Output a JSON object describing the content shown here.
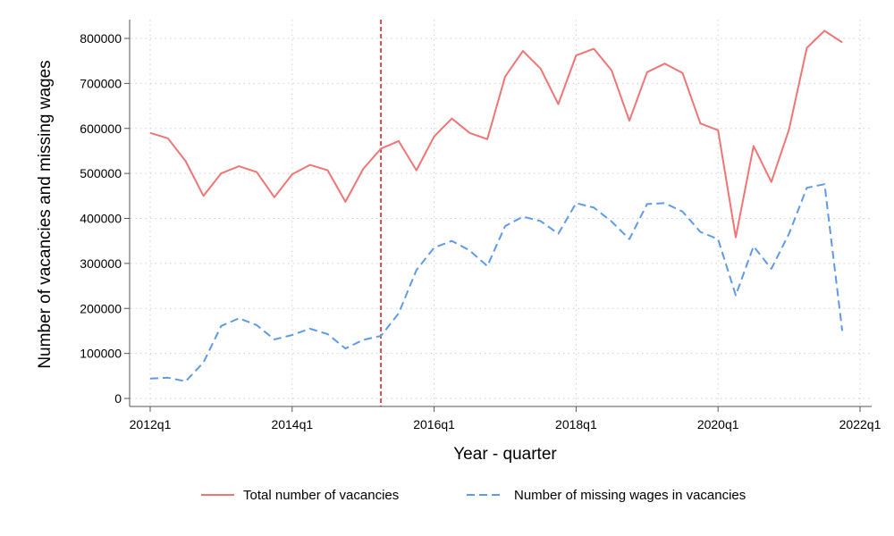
{
  "chart_data": {
    "type": "line",
    "title": "",
    "xlabel": "Year - quarter",
    "ylabel": "Number of vacancies and missing wages",
    "x_ticks": [
      "2012q1",
      "2014q1",
      "2016q1",
      "2018q1",
      "2020q1",
      "2022q1"
    ],
    "y_ticks": [
      "0",
      "100000",
      "200000",
      "300000",
      "400000",
      "500000",
      "600000",
      "700000",
      "800000"
    ],
    "xlim": [
      "2012q1",
      "2022q1"
    ],
    "ylim": [
      0,
      800000
    ],
    "grid": true,
    "legend_position": "bottom",
    "vertical_reference_line": "2015q2",
    "x": [
      "2012q1",
      "2012q2",
      "2012q3",
      "2012q4",
      "2013q1",
      "2013q2",
      "2013q3",
      "2013q4",
      "2014q1",
      "2014q2",
      "2014q3",
      "2014q4",
      "2015q1",
      "2015q2",
      "2015q3",
      "2015q4",
      "2016q1",
      "2016q2",
      "2016q3",
      "2016q4",
      "2017q1",
      "2017q2",
      "2017q3",
      "2017q4",
      "2018q1",
      "2018q2",
      "2018q3",
      "2018q4",
      "2019q1",
      "2019q2",
      "2019q3",
      "2019q4",
      "2020q1",
      "2020q2",
      "2020q3",
      "2020q4",
      "2021q1",
      "2021q2",
      "2021q3",
      "2021q4"
    ],
    "series": [
      {
        "name": "Total number of vacancies",
        "color": "#f07575",
        "dash": "solid",
        "values": [
          590000,
          578000,
          527000,
          450000,
          500000,
          516000,
          503000,
          447000,
          498000,
          519000,
          507000,
          437000,
          510000,
          555000,
          572000,
          507000,
          582000,
          622000,
          590000,
          576000,
          715000,
          772000,
          733000,
          654000,
          762000,
          777000,
          729000,
          617000,
          725000,
          744000,
          723000,
          611000,
          596000,
          358000,
          561000,
          481000,
          598000,
          779000,
          817000,
          791000
        ]
      },
      {
        "name": "Number of missing wages in vacancies",
        "color": "#5f9ae8",
        "dash": "dashed",
        "values": [
          44000,
          46000,
          38000,
          80000,
          161000,
          178000,
          163000,
          131000,
          141000,
          155000,
          143000,
          111000,
          130000,
          139000,
          189000,
          285000,
          335000,
          350000,
          329000,
          294000,
          383000,
          404000,
          394000,
          366000,
          434000,
          424000,
          393000,
          354000,
          432000,
          434000,
          415000,
          370000,
          354000,
          229000,
          338000,
          288000,
          366000,
          468000,
          476000,
          150000
        ]
      }
    ]
  }
}
